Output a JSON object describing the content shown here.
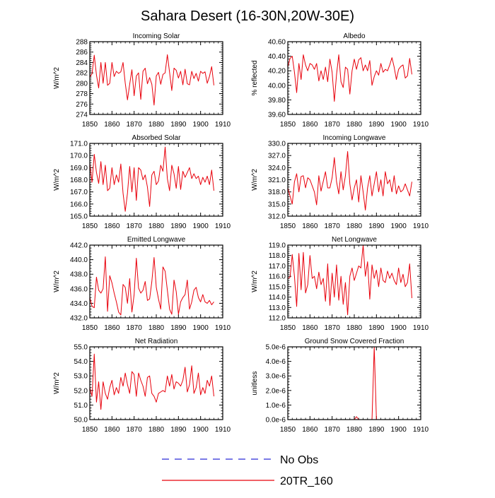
{
  "title": "Sahara Desert (16-30N,20W-30E)",
  "colors": {
    "model": "#e8000b",
    "obs": "#2b2bd8",
    "axis": "#000000"
  },
  "legend": [
    {
      "label": "No Obs",
      "style": "dashed",
      "color": "#2b2bd8"
    },
    {
      "label": "20TR_160",
      "style": "solid",
      "color": "#e8000b"
    }
  ],
  "chart_data": [
    {
      "type": "line",
      "title": "Incoming Solar",
      "ylabel": "W/m^2",
      "xlim": [
        1850,
        1910
      ],
      "xticks": [
        1850,
        1860,
        1870,
        1880,
        1890,
        1900,
        1910
      ],
      "ylim": [
        274,
        288
      ],
      "yticks": [
        274.0,
        276.0,
        278.0,
        280.0,
        282.0,
        284.0,
        286.0,
        288.0
      ],
      "x_start": 1850,
      "series": [
        {
          "name": "20TR_160",
          "values": [
            281.2,
            281.8,
            285.4,
            281.6,
            279.1,
            284.0,
            280.0,
            284.0,
            279.6,
            280.0,
            284.0,
            281.3,
            282.3,
            281.9,
            282.2,
            284.0,
            280.0,
            276.8,
            279.8,
            282.6,
            277.6,
            281.4,
            282.0,
            276.9,
            282.3,
            282.9,
            279.9,
            281.1,
            279.8,
            275.8,
            281.4,
            282.1,
            279.8,
            281.7,
            282.0,
            285.5,
            282.1,
            278.6,
            282.9,
            282.5,
            281.0,
            282.3,
            279.7,
            282.7,
            279.9,
            279.7,
            282.3,
            280.9,
            281.9,
            280.4,
            282.3,
            281.9,
            282.2,
            280.0,
            281.3,
            283.2,
            279.6
          ]
        }
      ]
    },
    {
      "type": "line",
      "title": "Albedo",
      "ylabel": "% reflected",
      "xlim": [
        1850,
        1910
      ],
      "xticks": [
        1850,
        1860,
        1870,
        1880,
        1890,
        1900,
        1910
      ],
      "ylim": [
        39.6,
        40.6
      ],
      "yticks": [
        "39.60",
        "39.80",
        "40.00",
        "40.20",
        "40.40",
        "40.60"
      ],
      "x_start": 1850,
      "series": [
        {
          "name": "20TR_160",
          "values": [
            40.25,
            40.37,
            40.4,
            40.18,
            39.9,
            40.3,
            40.08,
            40.42,
            40.28,
            40.2,
            40.3,
            40.28,
            40.22,
            40.3,
            40.06,
            40.2,
            40.08,
            40.25,
            40.05,
            40.36,
            40.18,
            39.78,
            40.15,
            40.42,
            40.05,
            39.97,
            40.25,
            40.22,
            39.88,
            40.2,
            40.36,
            40.22,
            40.35,
            40.38,
            40.2,
            40.28,
            40.2,
            40.34,
            40.0,
            40.12,
            40.2,
            40.14,
            40.3,
            40.18,
            40.22,
            40.2,
            40.28,
            40.38,
            40.25,
            40.08,
            40.22,
            40.26,
            40.28,
            40.1,
            40.13,
            40.37,
            40.15
          ]
        }
      ]
    },
    {
      "type": "line",
      "title": "Absorbed Solar",
      "ylabel": "W/m^2",
      "xlim": [
        1850,
        1910
      ],
      "xticks": [
        1850,
        1860,
        1870,
        1880,
        1890,
        1900,
        1910
      ],
      "ylim": [
        165,
        171
      ],
      "yticks": [
        "165.0",
        "166.0",
        "167.0",
        "168.0",
        "169.0",
        "170.0",
        "171.0"
      ],
      "x_start": 1850,
      "series": [
        {
          "name": "20TR_160",
          "values": [
            169.4,
            167.8,
            170.1,
            168.6,
            167.7,
            169.5,
            167.6,
            169.2,
            167.1,
            167.3,
            169.0,
            167.6,
            168.4,
            167.8,
            169.3,
            166.9,
            165.4,
            166.9,
            169.1,
            167.0,
            169.0,
            166.3,
            169.0,
            168.8,
            168.0,
            168.4,
            167.4,
            165.8,
            168.4,
            168.7,
            167.6,
            167.9,
            169.2,
            168.7,
            170.7,
            168.1,
            167.1,
            169.2,
            168.5,
            167.3,
            169.1,
            167.2,
            168.7,
            168.2,
            168.6,
            169.0,
            168.1,
            168.5,
            168.1,
            168.3,
            167.6,
            168.2,
            167.8,
            168.3,
            167.6,
            168.8,
            167.1
          ]
        }
      ]
    },
    {
      "type": "line",
      "title": "Incoming Longwave",
      "ylabel": "W/m^2",
      "xlim": [
        1850,
        1910
      ],
      "xticks": [
        1850,
        1860,
        1870,
        1880,
        1890,
        1900,
        1910
      ],
      "ylim": [
        312,
        330
      ],
      "yticks": [
        "312.0",
        "315.0",
        "318.0",
        "321.0",
        "324.0",
        "327.0",
        "330.0"
      ],
      "x_start": 1850,
      "series": [
        {
          "name": "20TR_160",
          "values": [
            319.0,
            317.0,
            315.0,
            320.5,
            322.5,
            318.0,
            321.8,
            322.0,
            319.0,
            321.5,
            321.0,
            319.5,
            318.0,
            314.8,
            322.0,
            318.2,
            320.6,
            323.0,
            319.0,
            319.0,
            321.5,
            326.5,
            320.5,
            317.5,
            323.0,
            318.5,
            322.0,
            328.0,
            320.0,
            316.0,
            319.0,
            321.0,
            315.5,
            322.0,
            318.0,
            313.5,
            319.0,
            322.0,
            317.0,
            320.0,
            323.0,
            318.0,
            321.0,
            317.0,
            323.0,
            320.0,
            321.0,
            318.0,
            322.0,
            317.5,
            319.5,
            318.0,
            318.5,
            320.0,
            318.5,
            317.0,
            320.5
          ]
        }
      ]
    },
    {
      "type": "line",
      "title": "Emitted Longwave",
      "ylabel": "W/m^2",
      "xlim": [
        1850,
        1910
      ],
      "xticks": [
        1850,
        1860,
        1870,
        1880,
        1890,
        1900,
        1910
      ],
      "ylim": [
        432,
        442
      ],
      "yticks": [
        "432.0",
        "434.0",
        "436.0",
        "438.0",
        "440.0",
        "442.0"
      ],
      "x_start": 1850,
      "series": [
        {
          "name": "20TR_160",
          "values": [
            434.8,
            433.6,
            433.4,
            437.6,
            435.8,
            435.4,
            436.0,
            440.4,
            432.9,
            437.8,
            436.8,
            435.4,
            434.2,
            432.8,
            432.4,
            436.6,
            436.2,
            434.0,
            437.4,
            432.8,
            435.2,
            440.2,
            436.1,
            435.4,
            435.8,
            437.0,
            434.4,
            434.6,
            437.0,
            440.3,
            436.2,
            434.6,
            433.2,
            439.0,
            438.4,
            435.8,
            433.2,
            432.5,
            437.2,
            435.6,
            432.5,
            434.2,
            434.8,
            435.2,
            437.2,
            433.2,
            434.2,
            435.8,
            436.2,
            434.8,
            434.2,
            435.2,
            434.2,
            434.0,
            434.4,
            433.8,
            434.2
          ]
        }
      ]
    },
    {
      "type": "line",
      "title": "Net Longwave",
      "ylabel": "W/m^2",
      "xlim": [
        1850,
        1910
      ],
      "xticks": [
        1850,
        1860,
        1870,
        1880,
        1890,
        1900,
        1910
      ],
      "ylim": [
        112,
        119
      ],
      "yticks": [
        "112.0",
        "113.0",
        "114.0",
        "115.0",
        "116.0",
        "117.0",
        "118.0",
        "119.0"
      ],
      "x_start": 1850,
      "series": [
        {
          "name": "20TR_160",
          "values": [
            115.8,
            115.9,
            118.1,
            116.0,
            113.1,
            118.2,
            114.7,
            118.3,
            114.4,
            115.2,
            118.0,
            115.8,
            116.0,
            114.8,
            116.4,
            115.2,
            115.8,
            113.6,
            117.2,
            113.2,
            116.3,
            114.0,
            117.1,
            113.7,
            116.0,
            113.3,
            115.4,
            112.3,
            116.0,
            116.8,
            115.6,
            116.3,
            117.0,
            116.8,
            119.0,
            116.0,
            117.4,
            113.8,
            117.1,
            115.8,
            116.6,
            115.0,
            116.8,
            115.6,
            115.4,
            116.5,
            115.8,
            116.3,
            115.6,
            115.2,
            116.8,
            115.4,
            116.2,
            115.0,
            115.4,
            117.2,
            113.9
          ]
        }
      ]
    },
    {
      "type": "line",
      "title": "Net Radiation",
      "ylabel": "W/m^2",
      "xlim": [
        1850,
        1910
      ],
      "xticks": [
        1850,
        1860,
        1870,
        1880,
        1890,
        1900,
        1910
      ],
      "ylim": [
        50,
        55
      ],
      "yticks": [
        "50.0",
        "51.0",
        "52.0",
        "53.0",
        "54.0",
        "55.0"
      ],
      "x_start": 1850,
      "series": [
        {
          "name": "20TR_160",
          "values": [
            52.2,
            51.6,
            54.5,
            51.2,
            52.6,
            50.7,
            52.6,
            51.8,
            51.4,
            52.2,
            52.7,
            51.7,
            52.2,
            51.8,
            52.9,
            52.3,
            53.2,
            52.4,
            51.8,
            53.3,
            53.1,
            51.6,
            53.2,
            52.7,
            52.3,
            51.6,
            52.9,
            53.0,
            51.8,
            51.6,
            51.2,
            51.8,
            51.9,
            52.0,
            51.9,
            53.0,
            52.3,
            53.1,
            52.1,
            52.6,
            52.5,
            52.3,
            52.7,
            53.6,
            51.9,
            52.4,
            53.7,
            51.8,
            52.2,
            53.2,
            51.7,
            52.2,
            51.8,
            52.7,
            52.3,
            53.0,
            51.6
          ]
        }
      ]
    },
    {
      "type": "line",
      "title": "Ground Snow Covered Fraction",
      "ylabel": "unitless",
      "xlim": [
        1850,
        1910
      ],
      "xticks": [
        1850,
        1860,
        1870,
        1880,
        1890,
        1900,
        1910
      ],
      "ylim": [
        0,
        5e-06
      ],
      "yticks": [
        "0.0e-6",
        "1.0e-6",
        "2.0e-6",
        "3.0e-6",
        "4.0e-6",
        "5.0e-6"
      ],
      "x_start": 1850,
      "series": [
        {
          "name": "20TR_160",
          "values": [
            0,
            0,
            0,
            0,
            0,
            0,
            0,
            0,
            0,
            0,
            0,
            0,
            0,
            0,
            0,
            0,
            0,
            0,
            0,
            0,
            0,
            0,
            0,
            0,
            0,
            0,
            0,
            0,
            0,
            0,
            0,
            2e-07,
            0,
            0,
            0,
            0,
            0,
            0,
            0,
            5e-06,
            0,
            0,
            0,
            0,
            0,
            0,
            0,
            0,
            0,
            0,
            0,
            0,
            0,
            0,
            0,
            0,
            0
          ]
        }
      ]
    }
  ]
}
